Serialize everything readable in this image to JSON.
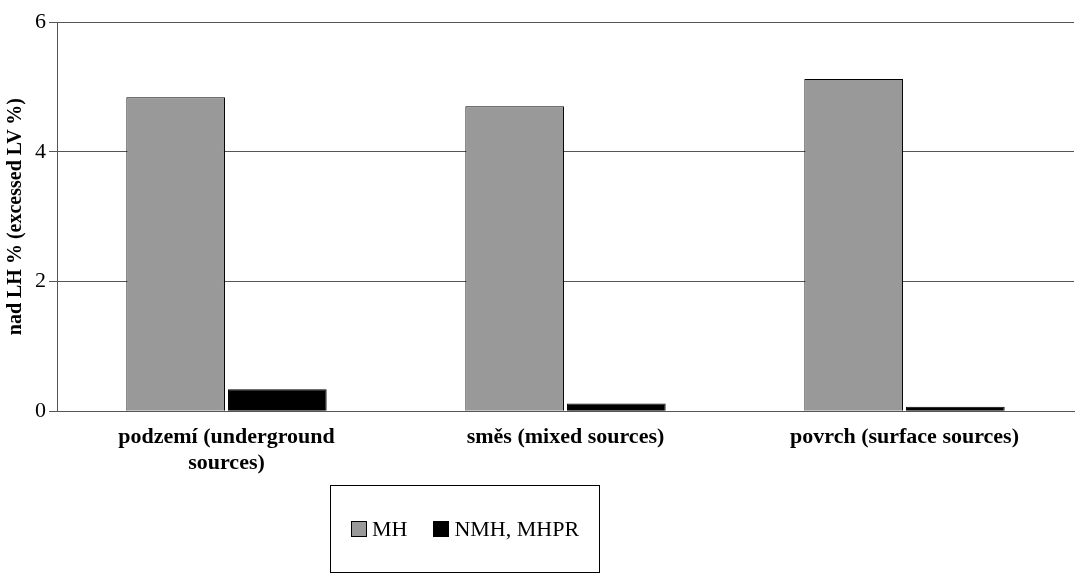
{
  "chart_data": {
    "type": "bar",
    "ylabel": "nad LH % (excessed LV %)",
    "categories": [
      "podzemí (underground sources)",
      "směs (mixed sources)",
      "povrch (surface sources)"
    ],
    "series": [
      {
        "name": "MH",
        "color": "#999999",
        "values": [
          4.84,
          4.7,
          5.12
        ]
      },
      {
        "name": "NMH, MHPR",
        "color": "#000000",
        "values": [
          0.34,
          0.12,
          0.07
        ]
      }
    ],
    "ylim": [
      0,
      6
    ],
    "yticks": [
      0,
      2,
      4,
      6
    ],
    "grid": "y",
    "legend": "bottom"
  }
}
